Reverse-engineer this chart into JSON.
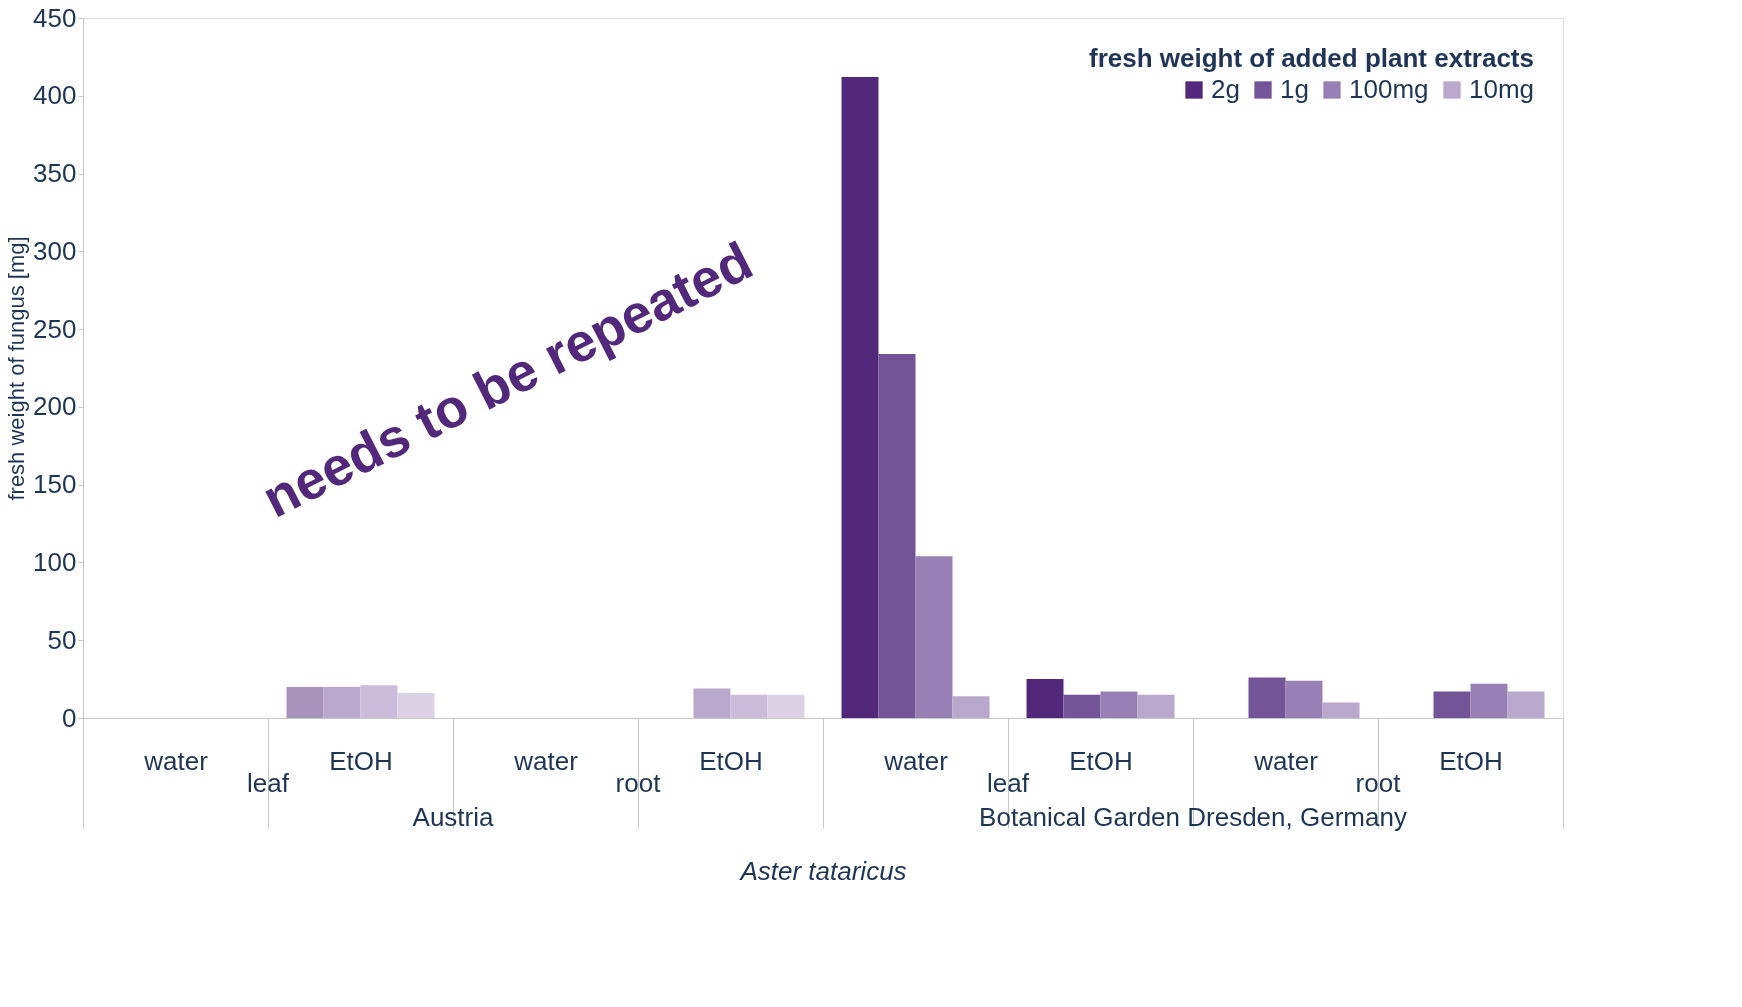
{
  "chart_data": {
    "type": "bar",
    "xlabel": "Aster tataricus",
    "ylabel": "fresh weight of fungus [mg]",
    "legend_title": "fresh weight of added plant extracts",
    "categories": [
      "water",
      "EtOH",
      "water",
      "EtOH",
      "water",
      "EtOH",
      "water",
      "EtOH"
    ],
    "series": [
      {
        "name": "2g",
        "color": "#52287a",
        "colors": [
          null,
          "#a893bd",
          null,
          null,
          "#52287a",
          "#52287a",
          null,
          null
        ],
        "values": [
          null,
          20,
          null,
          null,
          412,
          25,
          null,
          null
        ]
      },
      {
        "name": "1g",
        "color": "#735496",
        "colors": [
          null,
          "#b8a8cc",
          null,
          "#b8a8cc",
          "#735496",
          "#735496",
          "#735496",
          "#735496"
        ],
        "values": [
          null,
          20,
          null,
          19,
          234,
          15,
          26,
          17
        ]
      },
      {
        "name": "100mg",
        "color": "#9880b4",
        "colors": [
          null,
          "#cbbdd9",
          null,
          "#cbbdd9",
          "#9880b4",
          "#9880b4",
          "#9880b4",
          "#9880b4"
        ],
        "values": [
          null,
          21,
          null,
          15,
          104,
          17,
          24,
          22
        ]
      },
      {
        "name": "10mg",
        "color": "#b8a8cc",
        "colors": [
          null,
          "#dbd3e5",
          null,
          "#dbd3e5",
          "#b8a8cc",
          "#b8a8cc",
          "#b8a8cc",
          "#b8a8cc"
        ],
        "values": [
          null,
          16,
          null,
          15,
          14,
          15,
          10,
          17
        ]
      }
    ],
    "ylim": [
      0,
      450
    ],
    "yticks": [
      0,
      50,
      100,
      150,
      200,
      250,
      300,
      350,
      400,
      450
    ],
    "grid": false,
    "legend": "top right",
    "annotations": [
      "leaf",
      "root",
      "leaf",
      "root",
      "Austria",
      "Botanical Garden Dresden, Germany",
      "needs to be repeated"
    ]
  }
}
